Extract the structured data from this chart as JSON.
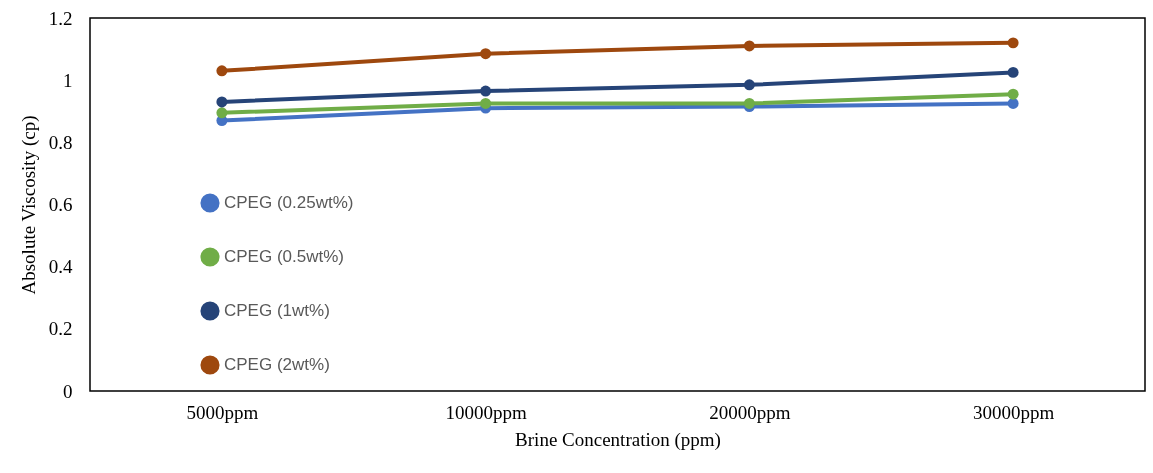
{
  "chart_data": {
    "type": "line",
    "xlabel": "Brine Concentration (ppm)",
    "ylabel": "Absolute Viscosity (cp)",
    "categories": [
      "5000ppm",
      "10000ppm",
      "20000ppm",
      "30000ppm"
    ],
    "series": [
      {
        "name": "CPEG (0.25wt%)",
        "color": "#4472c4",
        "values": [
          0.87,
          0.91,
          0.915,
          0.925
        ]
      },
      {
        "name": "CPEG (0.5wt%)",
        "color": "#70ad47",
        "values": [
          0.895,
          0.925,
          0.925,
          0.955
        ]
      },
      {
        "name": "CPEG (1wt%)",
        "color": "#264478",
        "values": [
          0.93,
          0.965,
          0.985,
          1.025
        ]
      },
      {
        "name": "CPEG (2wt%)",
        "color": "#9e480e",
        "values": [
          1.03,
          1.085,
          1.11,
          1.12
        ]
      }
    ],
    "ylim": [
      0,
      1.2
    ],
    "yticks": [
      0,
      0.2,
      0.4,
      0.6,
      0.8,
      1,
      1.2
    ],
    "grid": false,
    "legend": "left",
    "marker": "circle"
  }
}
